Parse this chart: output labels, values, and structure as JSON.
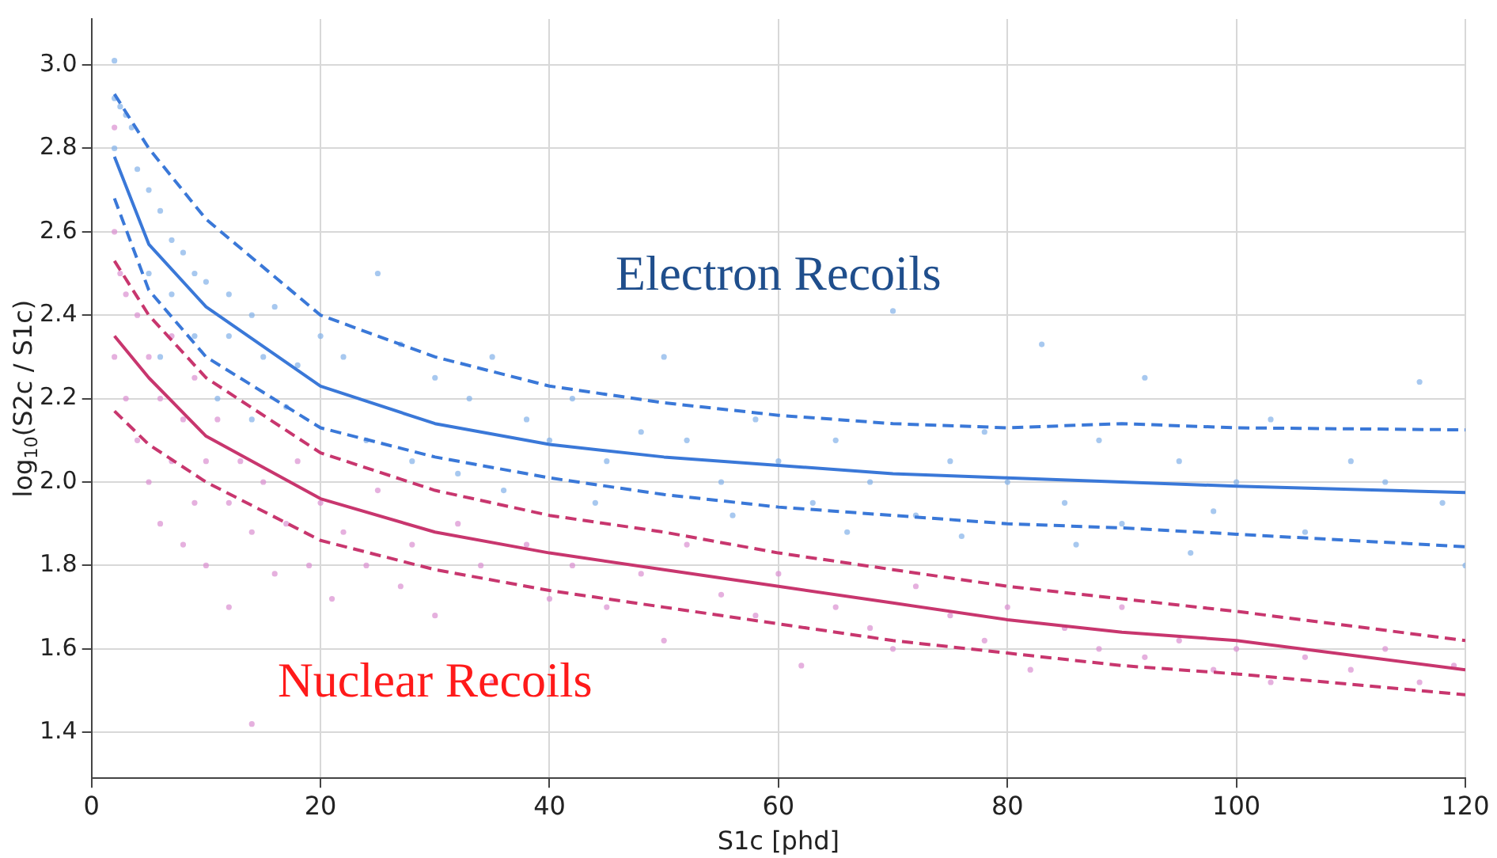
{
  "chart_data": {
    "type": "scatter",
    "xlabel": "S1c [phd]",
    "ylabel": "log$_{10}$(S2c / S1c)",
    "xlim": [
      0,
      120
    ],
    "ylim": [
      1.29,
      3.11
    ],
    "xticks": [
      0,
      20,
      40,
      60,
      80,
      100,
      120
    ],
    "yticks": [
      {
        "value": 1.4,
        "label": "1.4"
      },
      {
        "value": 1.6,
        "label": "1.6"
      },
      {
        "value": 1.8,
        "label": "1.8"
      },
      {
        "value": 2.0,
        "label": "2.0"
      },
      {
        "value": 2.2,
        "label": "2.2"
      },
      {
        "value": 2.4,
        "label": "2.4"
      },
      {
        "value": 2.6,
        "label": "2.6"
      },
      {
        "value": 2.8,
        "label": "2.8"
      },
      {
        "value": 3.0,
        "label": "3.0"
      }
    ],
    "grid": true,
    "legend": false,
    "annotations": [
      "Electron Recoils",
      "Nuclear Recoils"
    ],
    "series": [
      {
        "type": "scatter",
        "marker": "circle",
        "color": "#7fb0e8",
        "x": [
          2,
          2,
          2.5,
          3,
          2,
          3.5,
          4,
          5,
          6,
          7,
          8,
          5,
          7,
          9,
          10,
          12,
          14,
          16,
          12,
          15,
          18,
          20,
          22,
          25,
          27,
          30,
          33,
          35,
          38,
          40,
          42,
          45,
          48,
          50,
          52,
          55,
          58,
          60,
          63,
          65,
          68,
          70,
          72,
          75,
          78,
          80,
          83,
          85,
          88,
          90,
          92,
          95,
          98,
          100,
          103,
          106,
          110,
          113,
          116,
          118,
          120,
          6,
          9,
          11,
          14,
          17,
          24,
          28,
          32,
          36,
          44,
          56,
          66,
          76,
          86,
          96
        ],
        "values": [
          3.01,
          2.92,
          2.9,
          2.88,
          2.8,
          2.85,
          2.75,
          2.7,
          2.65,
          2.58,
          2.55,
          2.5,
          2.45,
          2.5,
          2.48,
          2.45,
          2.4,
          2.42,
          2.35,
          2.3,
          2.28,
          2.35,
          2.3,
          2.5,
          2.33,
          2.25,
          2.2,
          2.3,
          2.15,
          2.1,
          2.2,
          2.05,
          2.12,
          2.3,
          2.1,
          2.0,
          2.15,
          2.05,
          1.95,
          2.1,
          2.0,
          2.41,
          1.92,
          2.05,
          2.12,
          2.0,
          2.33,
          1.95,
          2.1,
          1.9,
          2.25,
          2.05,
          1.93,
          2.0,
          2.15,
          1.88,
          2.05,
          2.0,
          2.24,
          1.95,
          1.8,
          2.3,
          2.35,
          2.2,
          2.15,
          2.18,
          2.1,
          2.05,
          2.02,
          1.98,
          1.95,
          1.92,
          1.88,
          1.87,
          1.85,
          1.83
        ]
      },
      {
        "type": "scatter",
        "marker": "circle",
        "color": "#d98ccf",
        "x": [
          2,
          2,
          2.5,
          3,
          2,
          3,
          4,
          4,
          5,
          5,
          6,
          6,
          7,
          7,
          8,
          8,
          9,
          9,
          10,
          10,
          11,
          12,
          12,
          13,
          14,
          14,
          15,
          16,
          17,
          18,
          19,
          20,
          21,
          22,
          24,
          25,
          27,
          28,
          30,
          32,
          34,
          35,
          38,
          40,
          42,
          45,
          48,
          50,
          52,
          55,
          58,
          60,
          62,
          65,
          68,
          70,
          72,
          75,
          78,
          80,
          82,
          85,
          88,
          90,
          92,
          95,
          98,
          100,
          103,
          106,
          110,
          113,
          116,
          119
        ],
        "values": [
          2.85,
          2.6,
          2.5,
          2.45,
          2.3,
          2.2,
          2.4,
          2.1,
          2.3,
          2.0,
          2.2,
          1.9,
          2.35,
          2.05,
          2.15,
          1.85,
          2.25,
          1.95,
          2.05,
          1.8,
          2.15,
          1.95,
          1.7,
          2.05,
          1.88,
          1.42,
          2.0,
          1.78,
          1.9,
          2.05,
          1.8,
          1.95,
          1.72,
          1.88,
          1.8,
          1.98,
          1.75,
          1.85,
          1.68,
          1.9,
          1.8,
          1.52,
          1.85,
          1.72,
          1.8,
          1.7,
          1.78,
          1.62,
          1.85,
          1.73,
          1.68,
          1.78,
          1.56,
          1.7,
          1.65,
          1.6,
          1.75,
          1.68,
          1.62,
          1.7,
          1.55,
          1.65,
          1.6,
          1.7,
          1.58,
          1.62,
          1.55,
          1.6,
          1.52,
          1.58,
          1.55,
          1.6,
          1.52,
          1.56
        ]
      },
      {
        "type": "line",
        "marker": "none",
        "line_style": "dashed",
        "color": "#3a78d8",
        "x": [
          2,
          5,
          10,
          20,
          30,
          40,
          50,
          60,
          70,
          80,
          90,
          100,
          120
        ],
        "values": [
          2.93,
          2.8,
          2.63,
          2.4,
          2.3,
          2.23,
          2.19,
          2.16,
          2.14,
          2.13,
          2.14,
          2.13,
          2.125
        ]
      },
      {
        "type": "line",
        "marker": "none",
        "line_style": "solid",
        "color": "#3a78d8",
        "x": [
          2,
          5,
          10,
          20,
          30,
          40,
          50,
          60,
          70,
          80,
          90,
          100,
          120
        ],
        "values": [
          2.78,
          2.57,
          2.42,
          2.23,
          2.14,
          2.09,
          2.06,
          2.04,
          2.02,
          2.01,
          2.0,
          1.99,
          1.975
        ]
      },
      {
        "type": "line",
        "marker": "none",
        "line_style": "dashed",
        "color": "#3a78d8",
        "x": [
          2,
          5,
          10,
          20,
          30,
          40,
          50,
          60,
          70,
          80,
          90,
          100,
          120
        ],
        "values": [
          2.68,
          2.46,
          2.3,
          2.13,
          2.06,
          2.01,
          1.97,
          1.94,
          1.92,
          1.9,
          1.89,
          1.875,
          1.845
        ]
      },
      {
        "type": "line",
        "marker": "none",
        "line_style": "dashed",
        "color": "#c8366e",
        "x": [
          2,
          5,
          10,
          20,
          30,
          40,
          50,
          60,
          70,
          80,
          90,
          100,
          120
        ],
        "values": [
          2.53,
          2.4,
          2.25,
          2.07,
          1.98,
          1.92,
          1.88,
          1.83,
          1.79,
          1.75,
          1.72,
          1.69,
          1.62
        ]
      },
      {
        "type": "line",
        "marker": "none",
        "line_style": "solid",
        "color": "#c8366e",
        "x": [
          2,
          5,
          10,
          20,
          30,
          40,
          50,
          60,
          70,
          80,
          90,
          100,
          120
        ],
        "values": [
          2.35,
          2.25,
          2.11,
          1.96,
          1.88,
          1.83,
          1.79,
          1.75,
          1.71,
          1.67,
          1.64,
          1.62,
          1.55
        ]
      },
      {
        "type": "line",
        "marker": "none",
        "line_style": "dashed",
        "color": "#c8366e",
        "x": [
          2,
          5,
          10,
          20,
          30,
          40,
          50,
          60,
          70,
          80,
          90,
          100,
          120
        ],
        "values": [
          2.17,
          2.09,
          2.0,
          1.86,
          1.79,
          1.74,
          1.7,
          1.66,
          1.62,
          1.59,
          1.56,
          1.54,
          1.49
        ]
      }
    ]
  }
}
